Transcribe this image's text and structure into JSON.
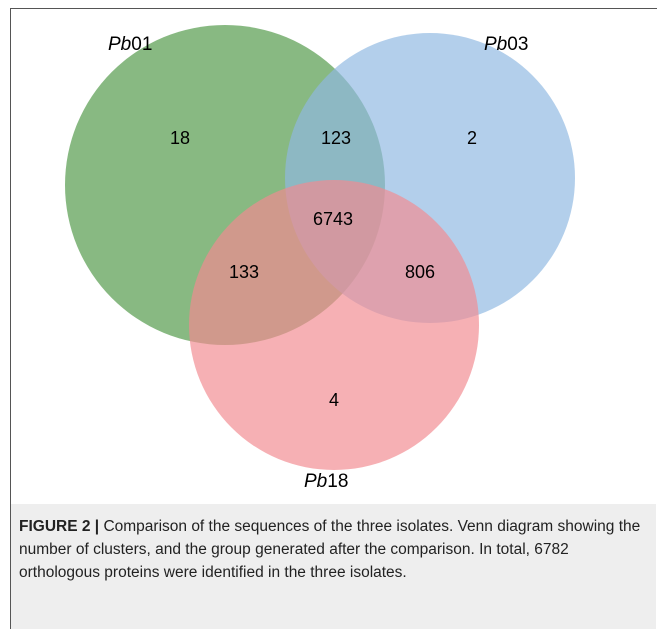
{
  "venn": {
    "sets": [
      {
        "name_prefix": "Pb",
        "name_suffix": "01",
        "color": "#5a9e52"
      },
      {
        "name_prefix": "Pb",
        "name_suffix": "03",
        "color": "#8fb8e2"
      },
      {
        "name_prefix": "Pb",
        "name_suffix": "18",
        "color": "#f28b90"
      }
    ],
    "regions": {
      "only_01": "18",
      "only_03": "2",
      "only_18": "4",
      "01_03": "123",
      "01_18": "133",
      "03_18": "806",
      "all": "6743"
    }
  },
  "caption": {
    "label": "FIGURE 2 |",
    "text": " Comparison of the sequences of the three isolates. Venn diagram showing the number of clusters, and the group generated after the comparison. In total, 6782 orthologous proteins were identified in the three isolates."
  }
}
